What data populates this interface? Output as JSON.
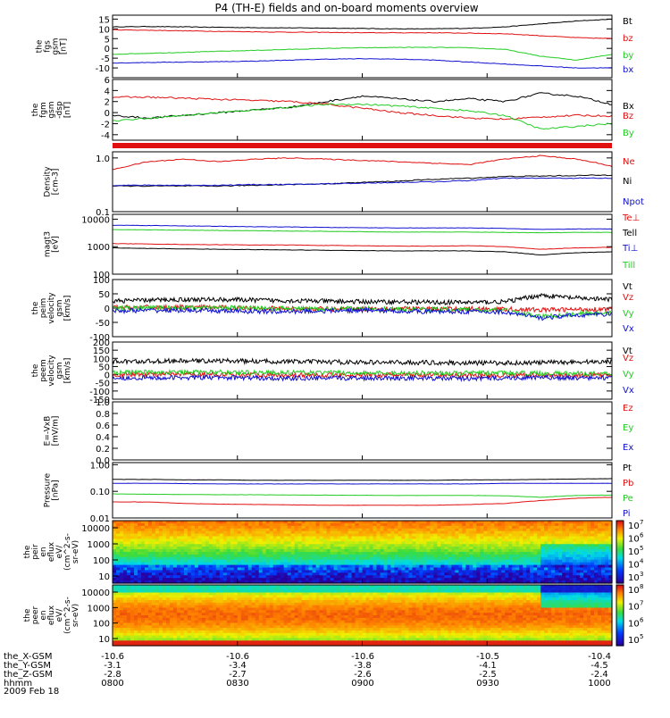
{
  "title": "P4 (TH-E) fields and on-board moments overview",
  "colors": {
    "black": "#000000",
    "red": "#e01010",
    "green": "#22cc22",
    "blue": "#1010d0"
  },
  "chart_data": [
    {
      "type": "line",
      "panel": "fgs",
      "ylabel": [
        "the",
        "fgs",
        "gsm",
        "[nT]"
      ],
      "yticks": [
        "15",
        "10",
        "5",
        "0",
        "-5",
        "-10"
      ],
      "ylim": [
        -15,
        17
      ],
      "series": [
        {
          "name": "Bt",
          "color": "black",
          "values": [
            11,
            11.2,
            11,
            10.8,
            10.6,
            10.5,
            10.4,
            10.2,
            10,
            10,
            10.3,
            11,
            12.5,
            14,
            15
          ]
        },
        {
          "name": "bz",
          "color": "red",
          "values": [
            9.5,
            9.3,
            9,
            8.7,
            8.5,
            8.3,
            8.2,
            8,
            8,
            8,
            7.8,
            7.5,
            6.5,
            5.5,
            5
          ]
        },
        {
          "name": "by",
          "color": "green",
          "values": [
            -3,
            -2.5,
            -2,
            -1.5,
            -1,
            -0.5,
            0,
            0.3,
            0.5,
            0.5,
            0.3,
            -0.5,
            -4,
            -6,
            -3
          ]
        },
        {
          "name": "bx",
          "color": "blue",
          "values": [
            -7.5,
            -7.2,
            -7,
            -6.8,
            -6.5,
            -6,
            -5.5,
            -5.3,
            -5.5,
            -6,
            -7,
            -8,
            -9,
            -10,
            -10
          ]
        }
      ]
    },
    {
      "type": "line",
      "panel": "fgm",
      "ylabel": [
        "the",
        "fgm",
        "gsm",
        "-dsp",
        "[nT]"
      ],
      "yticks": [
        "6",
        "4",
        "2",
        "0",
        "-2",
        "-4"
      ],
      "ylim": [
        -5,
        6
      ],
      "series": [
        {
          "name": "Bx",
          "color": "black",
          "values": [
            -0.5,
            -1,
            -0.5,
            0,
            0.5,
            1,
            2,
            3,
            2.5,
            2,
            2.5,
            2,
            3.5,
            3,
            1.5
          ]
        },
        {
          "name": "Bz",
          "color": "red",
          "values": [
            2.8,
            2.8,
            2.6,
            2.4,
            2.2,
            2,
            1.5,
            0.8,
            0,
            -0.5,
            -1,
            -1.2,
            -0.8,
            -0.5,
            -0.6
          ]
        },
        {
          "name": "By",
          "color": "green",
          "values": [
            -1.5,
            -1,
            -0.5,
            0,
            0.5,
            1,
            1.5,
            1.5,
            1.2,
            0.8,
            0.3,
            -0.5,
            -3,
            -2.5,
            -2
          ]
        }
      ]
    },
    {
      "type": "line",
      "panel": "density",
      "scale": "log",
      "ylabel": [
        "Density",
        "[cm-3]"
      ],
      "yticks": [
        "1.0",
        "0.1"
      ],
      "ylim": [
        0.1,
        1.3
      ],
      "series": [
        {
          "name": "Ne",
          "color": "red",
          "values": [
            0.6,
            0.85,
            0.95,
            0.85,
            0.95,
            1,
            0.95,
            0.9,
            0.85,
            0.8,
            0.75,
            0.95,
            1.1,
            0.95,
            0.7
          ]
        },
        {
          "name": "Ni",
          "color": "black",
          "values": [
            0.3,
            0.3,
            0.3,
            0.3,
            0.31,
            0.32,
            0.33,
            0.35,
            0.37,
            0.4,
            0.42,
            0.45,
            0.46,
            0.47,
            0.48
          ]
        },
        {
          "name": "Npot",
          "color": "blue",
          "values": [
            0.31,
            0.31,
            0.31,
            0.31,
            0.32,
            0.32,
            0.33,
            0.34,
            0.35,
            0.36,
            0.38,
            0.42,
            0.42,
            0.42,
            0.42
          ]
        }
      ]
    },
    {
      "type": "line",
      "panel": "temperature",
      "scale": "log",
      "ylabel": [
        "magt3",
        "[eV]"
      ],
      "yticks": [
        "10000",
        "1000",
        "100"
      ],
      "ylim": [
        100,
        15000
      ],
      "series": [
        {
          "name": "Te⊥",
          "color": "red",
          "values": [
            1300,
            1250,
            1200,
            1180,
            1150,
            1150,
            1100,
            1080,
            1050,
            1050,
            1080,
            1000,
            800,
            900,
            950
          ]
        },
        {
          "name": "Tell",
          "color": "black",
          "values": [
            900,
            860,
            830,
            800,
            780,
            760,
            740,
            720,
            700,
            700,
            700,
            650,
            500,
            600,
            650
          ]
        },
        {
          "name": "Ti⊥",
          "color": "blue",
          "values": [
            6000,
            5900,
            5700,
            5500,
            5300,
            5200,
            5000,
            4900,
            4800,
            4800,
            4800,
            4600,
            4200,
            4400,
            4400
          ]
        },
        {
          "name": "Till",
          "color": "green",
          "values": [
            4200,
            4100,
            4000,
            3900,
            3800,
            3700,
            3600,
            3500,
            3400,
            3400,
            3400,
            3300,
            3200,
            3300,
            3300
          ]
        }
      ]
    },
    {
      "type": "line",
      "panel": "peim-velocity",
      "ylabel": [
        "the",
        "peim",
        "velocity",
        "gsm",
        "[km/s]"
      ],
      "yticks": [
        "100",
        "50",
        "0",
        "-50",
        "-100"
      ],
      "ylim": [
        -100,
        100
      ],
      "series": [
        {
          "name": "Vt",
          "color": "black",
          "values": [
            25,
            28,
            30,
            30,
            28,
            26,
            24,
            22,
            22,
            20,
            20,
            22,
            45,
            35,
            30
          ]
        },
        {
          "name": "Vz",
          "color": "red",
          "values": [
            2,
            3,
            3,
            2,
            0,
            -2,
            -3,
            -2,
            -2,
            -3,
            -2,
            -4,
            -6,
            -5,
            -3
          ]
        },
        {
          "name": "Vy",
          "color": "green",
          "values": [
            0,
            0,
            2,
            2,
            0,
            -2,
            -2,
            -2,
            -4,
            -4,
            -6,
            -8,
            -30,
            -20,
            -15
          ]
        },
        {
          "name": "Vx",
          "color": "blue",
          "values": [
            -10,
            -8,
            -8,
            -10,
            -12,
            -12,
            -10,
            -8,
            -10,
            -12,
            -12,
            -14,
            -35,
            -25,
            -20
          ]
        }
      ]
    },
    {
      "type": "line",
      "panel": "peem-velocity",
      "ylabel": [
        "the",
        "peem",
        "velocity",
        "gsm",
        "[km/s]"
      ],
      "yticks": [
        "200",
        "150",
        "100",
        "50",
        "0",
        "-50",
        "-100",
        "-150"
      ],
      "ylim": [
        -150,
        200
      ],
      "series": [
        {
          "name": "Vt",
          "color": "black",
          "values": [
            80,
            82,
            84,
            85,
            82,
            80,
            78,
            76,
            75,
            74,
            72,
            72,
            74,
            78,
            80
          ]
        },
        {
          "name": "Vz",
          "color": "red",
          "values": [
            0,
            2,
            3,
            2,
            0,
            -2,
            -3,
            -2,
            -2,
            -3,
            -2,
            -3,
            -4,
            -3,
            -2
          ]
        },
        {
          "name": "Vy",
          "color": "green",
          "values": [
            15,
            15,
            15,
            15,
            14,
            12,
            12,
            10,
            10,
            10,
            10,
            10,
            8,
            8,
            8
          ]
        },
        {
          "name": "Vx",
          "color": "blue",
          "values": [
            -20,
            -20,
            -18,
            -18,
            -20,
            -22,
            -22,
            -20,
            -20,
            -22,
            -24,
            -20,
            -18,
            -20,
            -20
          ]
        }
      ]
    },
    {
      "type": "line",
      "panel": "e-field",
      "ylabel": [
        "E=-VxB",
        "[mV/m]"
      ],
      "yticks": [
        "1.0",
        "0.8",
        "0.6",
        "0.4",
        "0.2",
        "0.0"
      ],
      "ylim": [
        0,
        1
      ],
      "series": [
        {
          "name": "Ez",
          "color": "red",
          "values": []
        },
        {
          "name": "Ey",
          "color": "green",
          "values": []
        },
        {
          "name": "Ex",
          "color": "blue",
          "values": []
        }
      ]
    },
    {
      "type": "line",
      "panel": "pressure",
      "scale": "log",
      "ylabel": [
        "Pressure",
        "[nPa]"
      ],
      "yticks": [
        "1.00",
        "0.10",
        "0.01"
      ],
      "ylim": [
        0.01,
        1.2
      ],
      "series": [
        {
          "name": "Pt",
          "color": "black",
          "values": [
            0.28,
            0.28,
            0.27,
            0.27,
            0.26,
            0.26,
            0.26,
            0.26,
            0.26,
            0.26,
            0.27,
            0.27,
            0.28,
            0.29,
            0.3
          ]
        },
        {
          "name": "Pb",
          "color": "red",
          "values": [
            0.04,
            0.04,
            0.035,
            0.033,
            0.032,
            0.031,
            0.03,
            0.03,
            0.03,
            0.03,
            0.032,
            0.035,
            0.045,
            0.055,
            0.06
          ]
        },
        {
          "name": "Pe",
          "color": "green",
          "values": [
            0.08,
            0.078,
            0.076,
            0.075,
            0.074,
            0.073,
            0.072,
            0.071,
            0.07,
            0.07,
            0.07,
            0.068,
            0.06,
            0.07,
            0.072
          ]
        },
        {
          "name": "Pi",
          "color": "blue",
          "values": [
            0.2,
            0.2,
            0.195,
            0.19,
            0.19,
            0.19,
            0.19,
            0.19,
            0.19,
            0.19,
            0.19,
            0.2,
            0.2,
            0.2,
            0.2
          ]
        }
      ]
    },
    {
      "type": "heatmap",
      "panel": "peir",
      "ylabel": [
        "the",
        "peir",
        "en",
        "eflux",
        "eV/",
        "(cm^2-s-",
        "sr-eV)"
      ],
      "yticks": [
        "10000",
        "1000",
        "100",
        "10"
      ],
      "colorbar_ticks": [
        "10",
        "10",
        "10",
        "10",
        "10"
      ],
      "colorbar_exponents": [
        "7",
        "6",
        "5",
        "4",
        "3"
      ]
    },
    {
      "type": "heatmap",
      "panel": "peer",
      "ylabel": [
        "the",
        "peer",
        "en",
        "eflux",
        "eV/",
        "(cm^2-s-",
        "sr-eV)"
      ],
      "yticks": [
        "10000",
        "1000",
        "100",
        "10"
      ],
      "colorbar_ticks": [
        "10",
        "10",
        "10",
        "10"
      ],
      "colorbar_exponents": [
        "8",
        "7",
        "6",
        "5"
      ]
    }
  ],
  "x_axis": {
    "rows": [
      {
        "label": "the_X-GSM",
        "values": [
          "-10.6",
          "-10.6",
          "-10.6",
          "-10.5",
          "-10.4"
        ]
      },
      {
        "label": "the_Y-GSM",
        "values": [
          "-3.1",
          "-3.4",
          "-3.8",
          "-4.1",
          "-4.5"
        ]
      },
      {
        "label": "the_Z-GSM",
        "values": [
          "-2.8",
          "-2.7",
          "-2.6",
          "-2.5",
          "-2.4"
        ]
      },
      {
        "label": "hhmm",
        "values": [
          "0800",
          "0830",
          "0900",
          "0930",
          "1000"
        ]
      }
    ],
    "date": "2009 Feb 18"
  }
}
